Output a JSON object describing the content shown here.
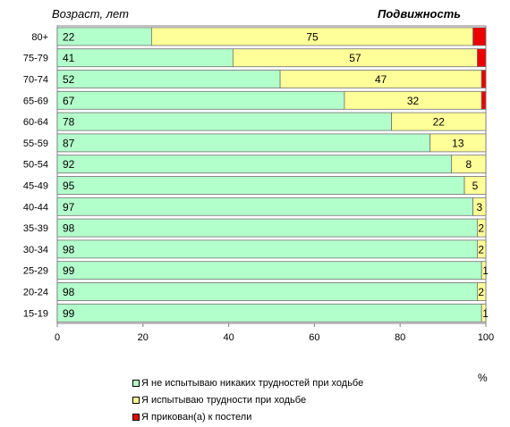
{
  "chart_data": {
    "type": "bar",
    "orientation": "horizontal",
    "stacked": true,
    "title": "Подвижность",
    "ylabel": "Возраст, лет",
    "xlabel": "%",
    "xlim": [
      0,
      100
    ],
    "xticks": [
      0,
      20,
      40,
      60,
      80,
      100
    ],
    "grid": false,
    "legend_position": "bottom",
    "categories": [
      "80+",
      "75-79",
      "70-74",
      "65-69",
      "60-64",
      "55-59",
      "50-54",
      "45-49",
      "40-44",
      "35-39",
      "30-34",
      "25-29",
      "20-24",
      "15-19"
    ],
    "series": [
      {
        "name": "Я не испытываю никаких трудностей при ходьбе",
        "color": "#b3ffcc",
        "values": [
          22,
          41,
          52,
          67,
          78,
          87,
          92,
          95,
          97,
          98,
          98,
          99,
          98,
          99
        ],
        "labels": [
          "22",
          "41",
          "52",
          "67",
          "78",
          "87",
          "92",
          "95",
          "97",
          "98",
          "98",
          "99",
          "98",
          "99"
        ]
      },
      {
        "name": "Я испытываю трудности при ходьбе",
        "color": "#ffff99",
        "values": [
          75,
          57,
          47,
          32,
          22,
          13,
          8,
          5,
          3,
          2,
          2,
          1,
          2,
          1
        ],
        "labels": [
          "75",
          "57",
          "47",
          "32",
          "22",
          "13",
          "8",
          "5",
          "3",
          "2",
          "2",
          "1",
          "2",
          "1"
        ]
      },
      {
        "name": "Я прикован(а) к постели",
        "color": "#ee0000",
        "values": [
          3,
          2,
          1,
          1,
          0.5,
          0,
          0,
          0.5,
          0,
          0,
          0,
          0,
          0,
          0.5
        ],
        "labels": []
      }
    ]
  }
}
